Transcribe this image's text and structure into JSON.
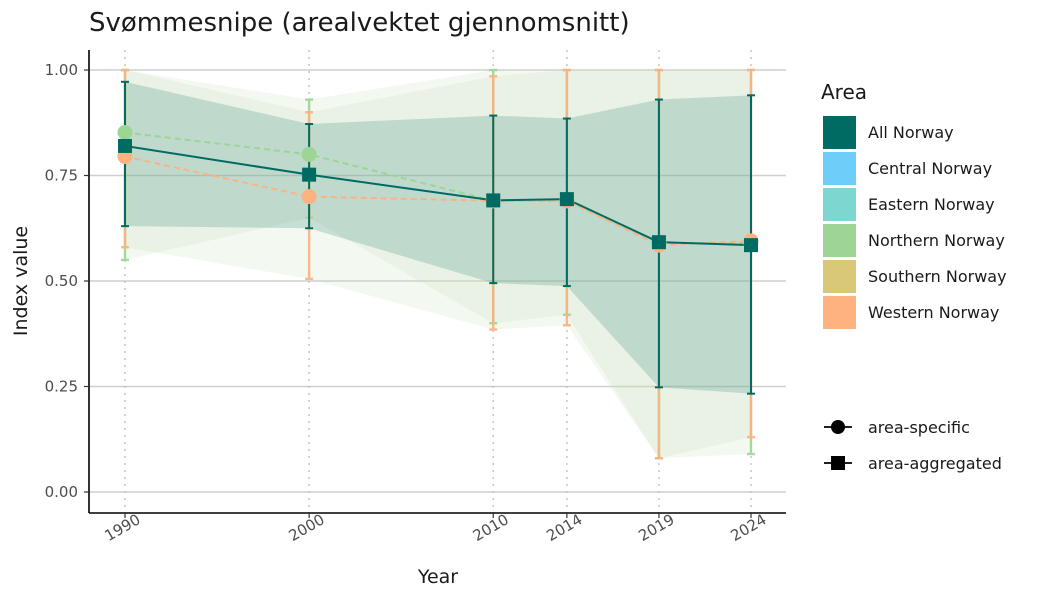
{
  "chart_data": {
    "type": "line",
    "title": "Svømmesnipe (arealvektet gjennomsnitt)",
    "xlabel": "Year",
    "ylabel": "Index value",
    "x": [
      1990,
      2000,
      2010,
      2014,
      2019,
      2024
    ],
    "x_tick_labels": [
      "1990",
      "2000",
      "2010",
      "2014",
      "2019",
      "2024"
    ],
    "ylim": [
      0,
      1
    ],
    "y_ticks": [
      0,
      0.25,
      0.5,
      0.75,
      1
    ],
    "y_tick_labels": [
      "0.00",
      "0.25",
      "0.50",
      "0.75",
      "1.00"
    ],
    "grid": "horizontal major, dotted vertical at years",
    "legend_title": "Area",
    "legend_placement": "right",
    "series": [
      {
        "name": "Northern Norway",
        "type": "area-specific",
        "color": "#9dd694",
        "values": [
          0.852,
          0.8,
          0.69,
          0.69,
          0.59,
          0.59
        ],
        "lower": [
          0.55,
          0.65,
          0.4,
          0.42,
          0.08,
          0.09
        ],
        "upper": [
          1.0,
          0.93,
          1.0,
          1.0,
          1.0,
          1.0
        ]
      },
      {
        "name": "Western Norway",
        "type": "area-specific",
        "color": "#fdb27f",
        "values": [
          0.795,
          0.7,
          0.69,
          0.69,
          0.585,
          0.595
        ],
        "lower": [
          0.58,
          0.505,
          0.385,
          0.395,
          0.08,
          0.13
        ],
        "upper": [
          1.0,
          0.9,
          0.985,
          1.0,
          1.0,
          1.0
        ]
      },
      {
        "name": "All Norway",
        "type": "area-aggregated",
        "color": "#006b62",
        "values": [
          0.82,
          0.752,
          0.691,
          0.694,
          0.592,
          0.585
        ],
        "lower": [
          0.63,
          0.625,
          0.495,
          0.488,
          0.248,
          0.233
        ],
        "upper": [
          0.972,
          0.872,
          0.892,
          0.885,
          0.93,
          0.94
        ]
      }
    ],
    "legend_areas": [
      {
        "name": "All Norway",
        "color": "#006b62"
      },
      {
        "name": "Central Norway",
        "color": "#6fcdfa"
      },
      {
        "name": "Eastern Norway",
        "color": "#7dd6cf"
      },
      {
        "name": "Northern Norway",
        "color": "#9dd694"
      },
      {
        "name": "Southern Norway",
        "color": "#d8c877"
      },
      {
        "name": "Western Norway",
        "color": "#fdb27f"
      }
    ],
    "legend_shapes": [
      {
        "label": "area-specific",
        "shape": "circle"
      },
      {
        "label": "area-aggregated",
        "shape": "square"
      }
    ]
  }
}
